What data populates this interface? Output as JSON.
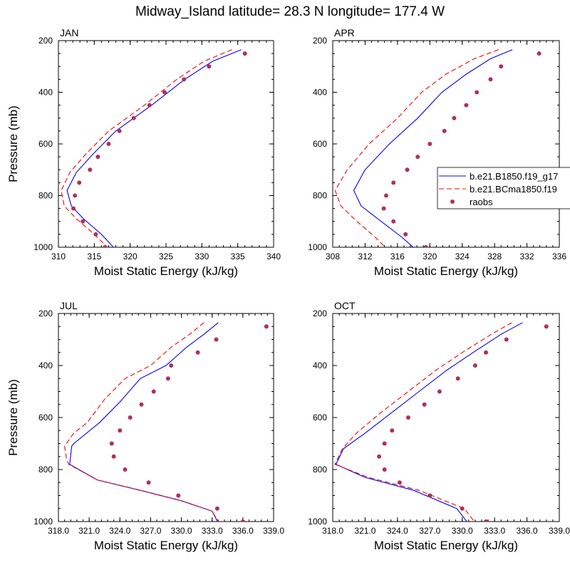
{
  "figure": {
    "title": "Midway_Island  latitude= 28.3 N longitude= 177.4 W",
    "legend_entries": [
      "b.e21.B1850.f19_g17",
      "b.e21.BCma1850.f19",
      "raobs"
    ]
  },
  "colors": {
    "series1": "#0000ff",
    "series2": "#ff0000",
    "raobs": "#b0305a"
  },
  "chart_data": [
    {
      "type": "line",
      "title": "JAN",
      "xlabel": "Moist Static Energy (kJ/kg)",
      "ylabel": "Pressure (mb)",
      "xlim": [
        310,
        340
      ],
      "ylim": [
        1000,
        200
      ],
      "y_reversed": true,
      "xticks": [
        310,
        315,
        320,
        325,
        330,
        335,
        340
      ],
      "xtick_labels": [
        "310",
        "315",
        "320",
        "325",
        "330",
        "335",
        "340"
      ],
      "yticks": [
        200,
        400,
        600,
        800,
        1000
      ],
      "ytick_labels": [
        "200",
        "400",
        "600",
        "800",
        "1000"
      ],
      "series": [
        {
          "name": "b.e21.B1850.f19_g17",
          "style": "solid",
          "x": [
            335.5,
            331.5,
            327.6,
            323.0,
            318.0,
            314.8,
            312.5,
            311.2,
            311.8,
            313.5,
            316.0,
            318.0
          ],
          "y": [
            235,
            280,
            350,
            450,
            550,
            640,
            710,
            780,
            840,
            890,
            950,
            1010
          ]
        },
        {
          "name": "b.e21.BCma1850.f19",
          "style": "dashed",
          "x": [
            334.2,
            330.3,
            326.5,
            322.0,
            317.0,
            313.8,
            311.6,
            310.4,
            310.8,
            312.5,
            315.0,
            317.2
          ],
          "y": [
            235,
            280,
            350,
            450,
            550,
            640,
            710,
            780,
            840,
            890,
            950,
            1010
          ]
        }
      ],
      "raobs": {
        "name": "raobs",
        "x": [
          336.0,
          331.0,
          327.5,
          324.8,
          322.7,
          320.5,
          318.5,
          317.0,
          315.5,
          314.4,
          312.9,
          312.3,
          312.1,
          313.4,
          315.2,
          316.5
        ],
        "y": [
          250,
          300,
          350,
          400,
          450,
          500,
          550,
          600,
          650,
          700,
          750,
          800,
          850,
          900,
          950,
          1000
        ]
      }
    },
    {
      "type": "line",
      "title": "APR",
      "xlabel": "Moist Static Energy (kJ/kg)",
      "ylabel": "",
      "xlim": [
        308,
        336
      ],
      "ylim": [
        1000,
        200
      ],
      "y_reversed": true,
      "xticks": [
        308,
        312,
        316,
        320,
        324,
        328,
        332,
        336
      ],
      "xtick_labels": [
        "308",
        "312",
        "316",
        "320",
        "324",
        "328",
        "332",
        "336"
      ],
      "yticks": [
        200,
        400,
        600,
        800,
        1000
      ],
      "ytick_labels": [
        "200",
        "400",
        "600",
        "800",
        "1000"
      ],
      "series": [
        {
          "name": "b.e21.B1850.f19_g17",
          "style": "solid",
          "x": [
            330.2,
            327.5,
            324.5,
            321.5,
            318.5,
            315.0,
            312.0,
            310.6,
            311.5,
            314.0,
            316.5,
            318.3
          ],
          "y": [
            235,
            270,
            330,
            400,
            500,
            600,
            700,
            780,
            840,
            900,
            960,
            1010
          ]
        },
        {
          "name": "b.e21.BCma1850.f19",
          "style": "dashed",
          "x": [
            328.5,
            325.5,
            322.0,
            319.0,
            316.0,
            312.5,
            309.8,
            308.3,
            309.0,
            311.0,
            313.2,
            314.8
          ],
          "y": [
            235,
            270,
            330,
            400,
            500,
            600,
            700,
            780,
            840,
            900,
            960,
            1010
          ]
        }
      ],
      "raobs": {
        "name": "raobs",
        "x": [
          333.5,
          328.8,
          327.5,
          325.8,
          324.5,
          323.0,
          321.8,
          320.0,
          318.5,
          317.2,
          315.5,
          314.6,
          314.3,
          315.5,
          317.0,
          319.5
        ],
        "y": [
          250,
          300,
          350,
          400,
          450,
          500,
          550,
          600,
          650,
          700,
          750,
          800,
          850,
          900,
          950,
          1000
        ]
      }
    },
    {
      "type": "line",
      "title": "JUL",
      "xlabel": "Moist Static Energy (kJ/kg)",
      "ylabel": "Pressure (mb)",
      "xlim": [
        318,
        339
      ],
      "ylim": [
        1000,
        200
      ],
      "y_reversed": true,
      "xticks": [
        318,
        321,
        324,
        327,
        330,
        333,
        336,
        339
      ],
      "xtick_labels": [
        "318.0",
        "321.0",
        "324.0",
        "327.0",
        "330.0",
        "333.0",
        "336.0",
        "339.0"
      ],
      "yticks": [
        200,
        400,
        600,
        800,
        1000
      ],
      "ytick_labels": [
        "200",
        "400",
        "600",
        "800",
        "1000"
      ],
      "series": [
        {
          "name": "b.e21.B1850.f19_g17",
          "style": "solid",
          "x": [
            333.6,
            332.2,
            330.5,
            328.5,
            326.0,
            324.0,
            322.0,
            319.5,
            319.3,
            319.1,
            321.8,
            326.0,
            330.0,
            333.0,
            333.8
          ],
          "y": [
            235,
            280,
            330,
            400,
            450,
            540,
            620,
            700,
            710,
            780,
            840,
            880,
            920,
            960,
            1020
          ]
        },
        {
          "name": "b.e21.BCma1850.f19",
          "style": "dashed",
          "x": [
            332.2,
            330.8,
            329.0,
            327.0,
            324.5,
            322.5,
            320.8,
            319.5,
            318.6,
            318.8,
            319.0,
            321.8,
            326.0,
            330.0,
            333.0,
            333.9
          ],
          "y": [
            235,
            280,
            330,
            400,
            450,
            530,
            620,
            660,
            710,
            760,
            780,
            840,
            880,
            920,
            960,
            1020
          ]
        }
      ],
      "raobs": {
        "name": "raobs",
        "x": [
          338.3,
          333.4,
          331.6,
          329.0,
          328.7,
          327.3,
          326.1,
          325.0,
          324.0,
          323.2,
          323.4,
          324.5,
          326.8,
          329.7,
          333.5,
          336.0
        ],
        "y": [
          250,
          300,
          350,
          400,
          450,
          500,
          550,
          600,
          650,
          700,
          750,
          800,
          850,
          900,
          950,
          1000
        ]
      }
    },
    {
      "type": "line",
      "title": "OCT",
      "xlabel": "Moist Static Energy (kJ/kg)",
      "ylabel": "",
      "xlim": [
        318,
        339
      ],
      "ylim": [
        1000,
        200
      ],
      "y_reversed": true,
      "xticks": [
        318,
        321,
        324,
        327,
        330,
        333,
        336,
        339
      ],
      "xtick_labels": [
        "318.0",
        "321.0",
        "324.0",
        "327.0",
        "330.0",
        "333.0",
        "336.0",
        "339.0"
      ],
      "yticks": [
        200,
        400,
        600,
        800,
        1000
      ],
      "ytick_labels": [
        "200",
        "400",
        "600",
        "800",
        "1000"
      ],
      "series": [
        {
          "name": "b.e21.B1850.f19_g17",
          "style": "solid",
          "x": [
            335.6,
            333.6,
            331.0,
            328.5,
            326.0,
            323.5,
            321.0,
            319.0,
            318.3,
            321.0,
            325.5,
            329.5,
            330.8
          ],
          "y": [
            235,
            280,
            350,
            420,
            500,
            580,
            660,
            720,
            780,
            830,
            880,
            950,
            1020
          ]
        },
        {
          "name": "b.e21.BCma1850.f19",
          "style": "dashed",
          "x": [
            334.6,
            332.7,
            330.0,
            327.5,
            325.0,
            322.5,
            320.2,
            318.9,
            318.2,
            321.3,
            326.0,
            330.2,
            331.5
          ],
          "y": [
            235,
            280,
            350,
            420,
            500,
            580,
            660,
            720,
            780,
            830,
            880,
            950,
            1020
          ]
        }
      ],
      "raobs": {
        "name": "raobs",
        "x": [
          337.8,
          334.1,
          332.2,
          331.2,
          329.6,
          327.9,
          326.5,
          325.0,
          323.5,
          322.8,
          322.3,
          322.8,
          324.2,
          327.0,
          330.0,
          332.2
        ],
        "y": [
          250,
          300,
          350,
          400,
          450,
          500,
          550,
          600,
          650,
          700,
          750,
          800,
          850,
          900,
          950,
          1000
        ]
      }
    }
  ]
}
